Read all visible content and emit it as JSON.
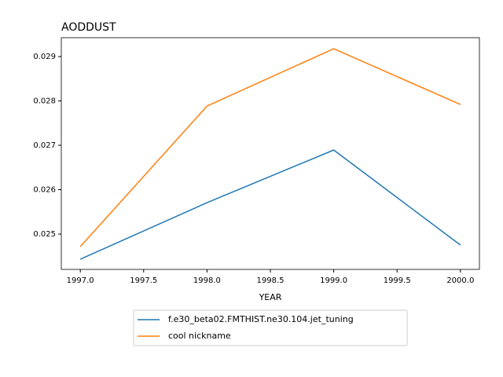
{
  "chart_data": {
    "type": "line",
    "title": "AODDUST",
    "x_label": "YEAR",
    "x": [
      1997,
      1998,
      1999,
      2000
    ],
    "series": [
      {
        "name": "f.e30_beta02.FMTHIST.ne30.104.jet_tuning",
        "color": "#1f77b4",
        "values": [
          0.024434,
          0.025708,
          0.026894,
          0.024752
        ]
      },
      {
        "name": "cool nickname",
        "color": "#ff7f0e",
        "values": [
          0.024717,
          0.027885,
          0.029177,
          0.02792
        ]
      }
    ],
    "xlim": [
      1996.85,
      2000.15
    ],
    "xticks": [
      {
        "value": 1997,
        "label": "1997.0"
      },
      {
        "value": 1997.5,
        "label": "1997.5"
      },
      {
        "value": 1998,
        "label": "1998.0"
      },
      {
        "value": 1998.5,
        "label": "1998.5"
      },
      {
        "value": 1999,
        "label": "1999.0"
      },
      {
        "value": 1999.5,
        "label": "1999.5"
      },
      {
        "value": 2000,
        "label": "2000.0"
      }
    ],
    "ylim": [
      0.024204,
      0.029425
    ],
    "yticks": [
      0.025,
      0.026,
      0.027,
      0.028,
      0.029
    ],
    "legend": "below"
  }
}
